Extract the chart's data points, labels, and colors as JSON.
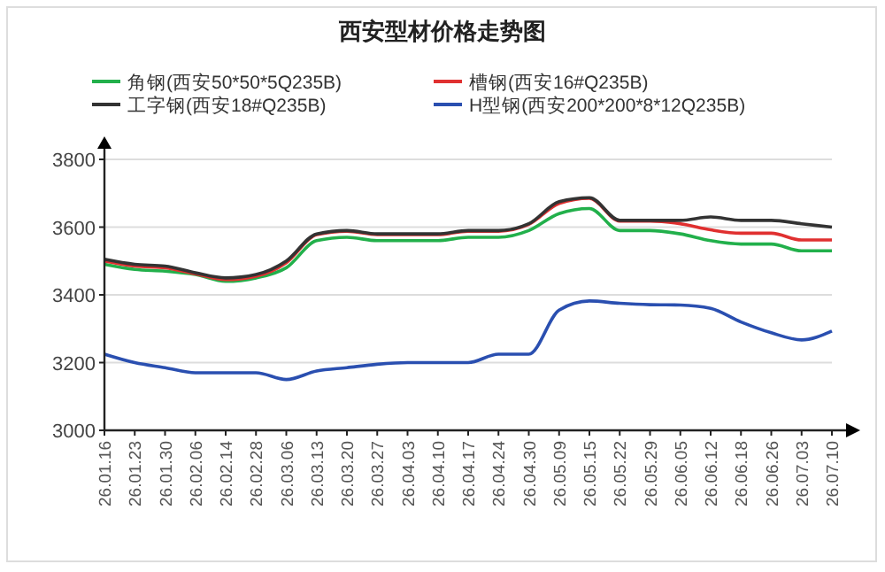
{
  "chart_data": {
    "type": "line",
    "title": "西安型材价格走势图",
    "categories": [
      "26.01.16",
      "26.01.23",
      "26.01.30",
      "26.02.06",
      "26.02.14",
      "26.02.28",
      "26.03.06",
      "26.03.13",
      "26.03.20",
      "26.03.27",
      "26.04.03",
      "26.04.10",
      "26.04.17",
      "26.04.24",
      "26.04.30",
      "26.05.09",
      "26.05.15",
      "26.05.22",
      "26.05.29",
      "26.06.05",
      "26.06.12",
      "26.06.18",
      "26.06.26",
      "26.07.03",
      "26.07.10"
    ],
    "series": [
      {
        "name": "角钢(西安50*50*5Q235B)",
        "color": "#22b04b",
        "values": [
          3490,
          3475,
          3470,
          3460,
          3440,
          3450,
          3480,
          3560,
          3570,
          3560,
          3560,
          3560,
          3570,
          3570,
          3590,
          3640,
          3655,
          3590,
          3590,
          3580,
          3560,
          3550,
          3550,
          3530,
          3530
        ]
      },
      {
        "name": "槽钢(西安16#Q235B)",
        "color": "#e03030",
        "values": [
          3500,
          3485,
          3480,
          3462,
          3445,
          3455,
          3495,
          3578,
          3588,
          3578,
          3578,
          3578,
          3588,
          3588,
          3608,
          3670,
          3685,
          3618,
          3618,
          3610,
          3592,
          3582,
          3582,
          3562,
          3562
        ]
      },
      {
        "name": "工字钢(西安18#Q235B)",
        "color": "#333333",
        "values": [
          3505,
          3490,
          3485,
          3465,
          3450,
          3460,
          3500,
          3580,
          3590,
          3580,
          3580,
          3580,
          3590,
          3590,
          3610,
          3675,
          3687,
          3620,
          3620,
          3620,
          3630,
          3620,
          3620,
          3610,
          3600
        ]
      },
      {
        "name": "H型钢(西安200*200*8*12Q235B)",
        "color": "#2a4fb0",
        "values": [
          3225,
          3200,
          3185,
          3170,
          3170,
          3170,
          3150,
          3175,
          3185,
          3195,
          3200,
          3200,
          3200,
          3225,
          3225,
          3355,
          3382,
          3375,
          3371,
          3370,
          3360,
          3320,
          3288,
          3267,
          3293
        ]
      }
    ],
    "ylim": [
      3000,
      3800
    ],
    "yticks": [
      3000,
      3200,
      3400,
      3600,
      3800
    ],
    "grid": "y",
    "legend": "top",
    "marker": "none",
    "line_style": "solid"
  }
}
